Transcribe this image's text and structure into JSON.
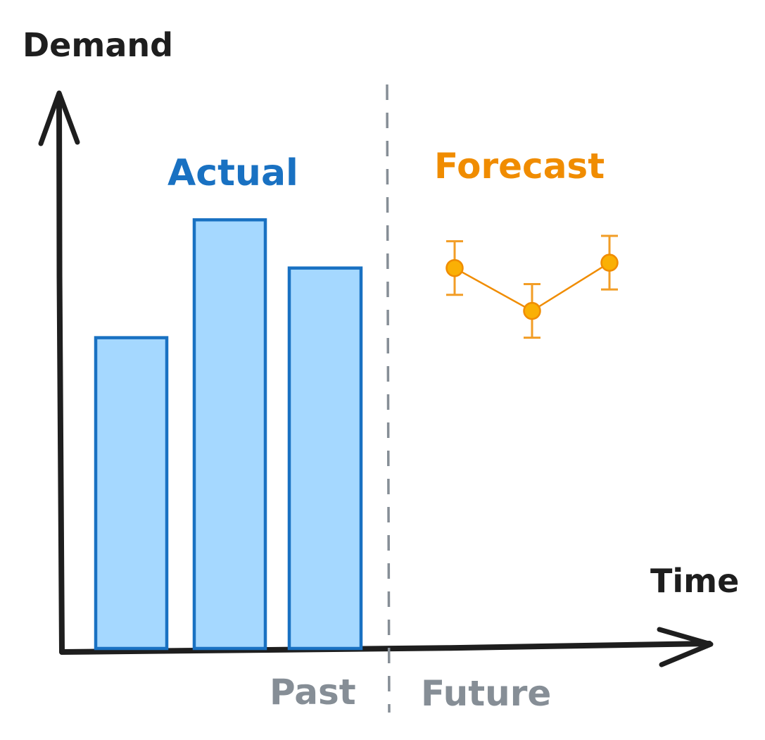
{
  "labels": {
    "y_axis": "Demand",
    "x_axis": "Time",
    "actual": "Actual",
    "forecast": "Forecast",
    "past": "Past",
    "future": "Future"
  },
  "colors": {
    "axis": "#1e1e1e",
    "actual_stroke": "#1971c2",
    "actual_fill": "#a5d8ff",
    "forecast": "#f08c00",
    "forecast_point": "#fab005",
    "divider": "#868e96",
    "muted_text": "#868e96"
  },
  "chart_data": {
    "type": "bar",
    "actual": {
      "name": "Actual",
      "values": [
        0.58,
        0.8,
        0.71
      ]
    },
    "forecast": {
      "name": "Forecast",
      "values": [
        0.71,
        0.63,
        0.72
      ],
      "error": [
        0.05,
        0.05,
        0.05
      ]
    },
    "ylim": [
      0,
      1
    ]
  }
}
